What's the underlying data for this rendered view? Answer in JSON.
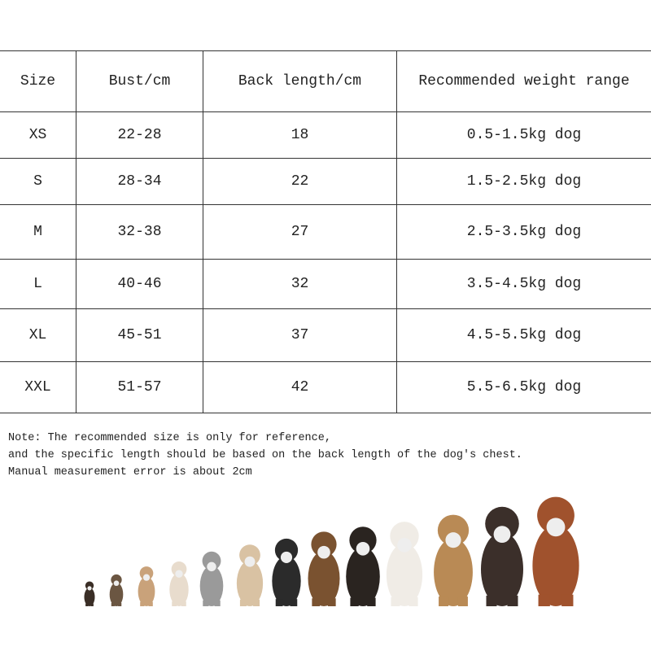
{
  "table": {
    "header": [
      "Size",
      "Bust/cm",
      "Back length/cm",
      "Recommended weight range"
    ],
    "rows": [
      [
        "XS",
        "22-28",
        "18",
        "0.5-1.5kg dog"
      ],
      [
        "S",
        "28-34",
        "22",
        "1.5-2.5kg dog"
      ],
      [
        "M",
        "32-38",
        "27",
        "2.5-3.5kg dog"
      ],
      [
        "L",
        "40-46",
        "32",
        "3.5-4.5kg dog"
      ],
      [
        "XL",
        "45-51",
        "37",
        "4.5-5.5kg dog"
      ],
      [
        "XXL",
        "51-57",
        "42",
        "5.5-6.5kg dog"
      ]
    ]
  },
  "note": [
    "Note: The recommended size is only for reference,",
    "and the specific length should be based on the back length of the dog's chest.",
    "Manual measurement error is about 2cm"
  ]
}
